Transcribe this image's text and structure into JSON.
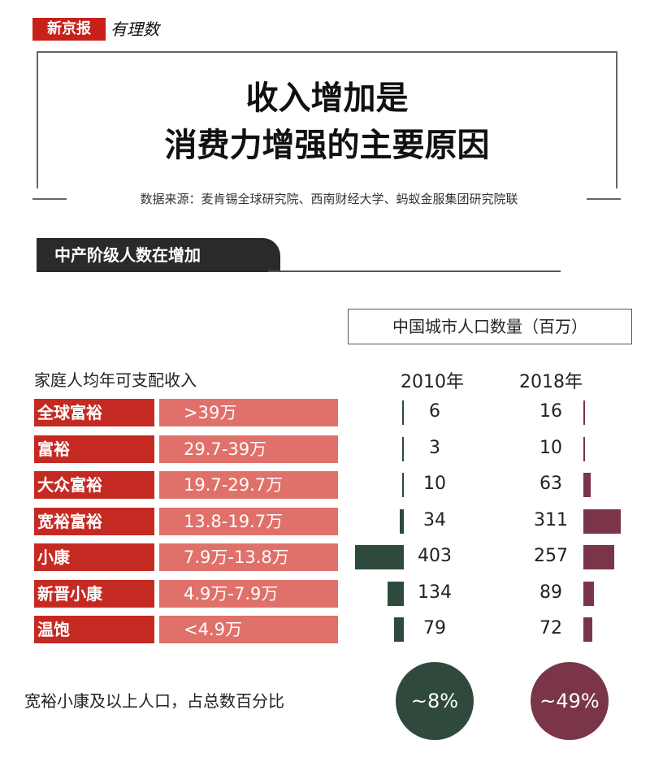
{
  "brand": {
    "name": "新京报",
    "column": "有理数"
  },
  "title": {
    "line1": "收入增加是",
    "line2": "消费力增强的主要原因"
  },
  "source": "数据来源：麦肯锡全球研究院、西南财经大学、蚂蚁金服集团研究院联",
  "section_title": "中产阶级人数在增加",
  "chart_data": {
    "type": "bar",
    "title": "中国城市人口数量（百万）",
    "xlabel": "家庭人均年可支配收入",
    "ylabel": "",
    "categories": [
      "全球富裕",
      "富裕",
      "大众富裕",
      "宽裕富裕",
      "小康",
      "新晋小康",
      "温饱"
    ],
    "ranges": [
      ">39万",
      "29.7-39万",
      "19.7-29.7万",
      "13.8-19.7万",
      "7.9万-13.8万",
      "4.9万-7.9万",
      "<4.9万"
    ],
    "series": [
      {
        "name": "2010年",
        "values": [
          6,
          3,
          10,
          34,
          403,
          134,
          79
        ],
        "color": "#2f4a3c"
      },
      {
        "name": "2018年",
        "values": [
          16,
          10,
          63,
          311,
          257,
          89,
          72
        ],
        "color": "#7a3648"
      }
    ],
    "share_label": "宽裕小康及以上人口，占总数百分比",
    "share": [
      {
        "year": "2010年",
        "value": "~8%",
        "color": "#2f4a3c"
      },
      {
        "year": "2018年",
        "value": "~49%",
        "color": "#7a3648"
      }
    ]
  }
}
